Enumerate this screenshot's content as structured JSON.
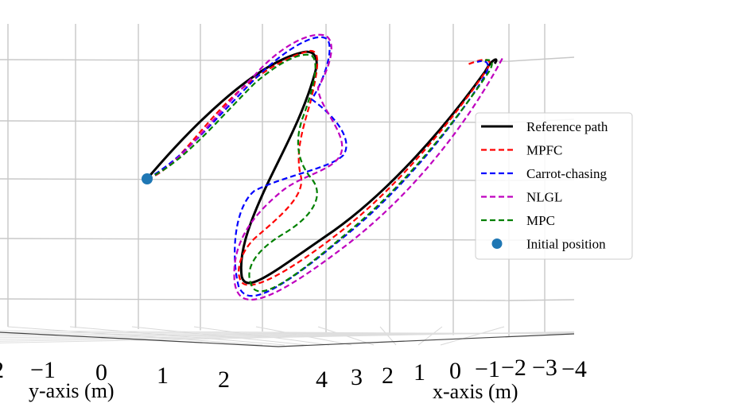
{
  "chart_data": {
    "type": "line",
    "projection": "3d",
    "title": "",
    "xlabel": "x-axis (m)",
    "ylabel": "y-axis (m)",
    "x_ticks": [
      "4",
      "3",
      "2",
      "1",
      "0",
      "−1",
      "−2",
      "−3",
      "−4"
    ],
    "y_ticks": [
      "2",
      "−1",
      "0",
      "1",
      "2"
    ],
    "grid": true,
    "legend_position": "right",
    "series": [
      {
        "name": "Reference path",
        "color": "#000000",
        "style": "solid"
      },
      {
        "name": "MPFC",
        "color": "#ff0000",
        "style": "dashed"
      },
      {
        "name": "Carrot-chasing",
        "color": "#0000ff",
        "style": "dashed"
      },
      {
        "name": "NLGL",
        "color": "#bf00bf",
        "style": "dashed"
      },
      {
        "name": "MPC",
        "color": "#008000",
        "style": "dashed"
      },
      {
        "name": "Initial position",
        "color": "#1f77b4",
        "style": "marker"
      }
    ]
  }
}
